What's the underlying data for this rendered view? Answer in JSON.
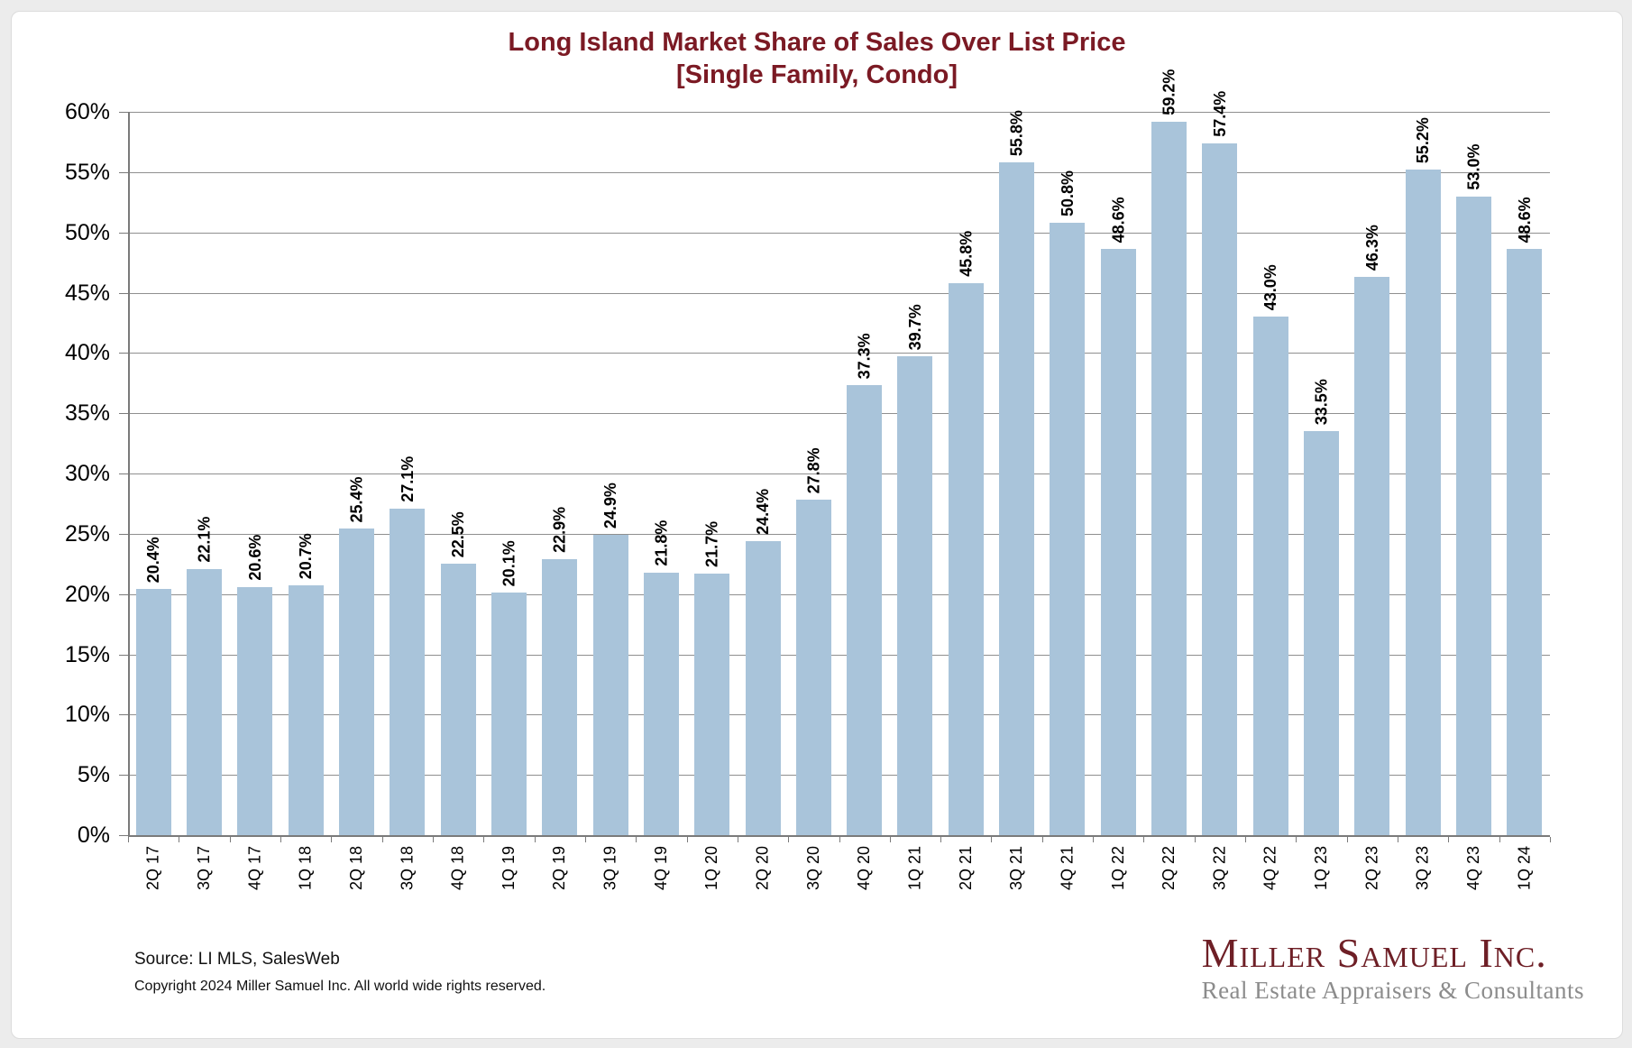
{
  "chart_data": {
    "type": "bar",
    "title": "Long Island Market Share of Sales Over List Price",
    "subtitle": "[Single Family, Condo]",
    "title_color": "#7b1a24",
    "bar_color": "#a9c4da",
    "grid": true,
    "legend_position": "none",
    "ylim": [
      0,
      60
    ],
    "ytick_step": 5,
    "y_ticks": [
      "0%",
      "5%",
      "10%",
      "15%",
      "20%",
      "25%",
      "30%",
      "35%",
      "40%",
      "45%",
      "50%",
      "55%",
      "60%"
    ],
    "categories": [
      "2Q 17",
      "3Q 17",
      "4Q 17",
      "1Q 18",
      "2Q 18",
      "3Q 18",
      "4Q 18",
      "1Q 19",
      "2Q 19",
      "3Q 19",
      "4Q 19",
      "1Q 20",
      "2Q 20",
      "3Q 20",
      "4Q 20",
      "1Q 21",
      "2Q 21",
      "3Q 21",
      "4Q 21",
      "1Q 22",
      "2Q 22",
      "3Q 22",
      "4Q 22",
      "1Q 23",
      "2Q 23",
      "3Q 23",
      "4Q 23",
      "1Q 24"
    ],
    "values": [
      20.4,
      22.1,
      20.6,
      20.7,
      25.4,
      27.1,
      22.5,
      20.1,
      22.9,
      24.9,
      21.8,
      21.7,
      24.4,
      27.8,
      37.3,
      39.7,
      45.8,
      55.8,
      50.8,
      48.6,
      59.2,
      57.4,
      43.0,
      33.5,
      46.3,
      55.2,
      53.0,
      48.6
    ],
    "value_label_format": "percent_one_decimal",
    "xlabel": "",
    "ylabel": ""
  },
  "footer": {
    "source": "Source:  LI MLS, SalesWeb",
    "copyright": "Copyright 2024 Miller Samuel Inc.  All world wide rights reserved.",
    "logo": {
      "name": "Miller Samuel Inc.",
      "tagline": "Real Estate Appraisers & Consultants"
    }
  }
}
